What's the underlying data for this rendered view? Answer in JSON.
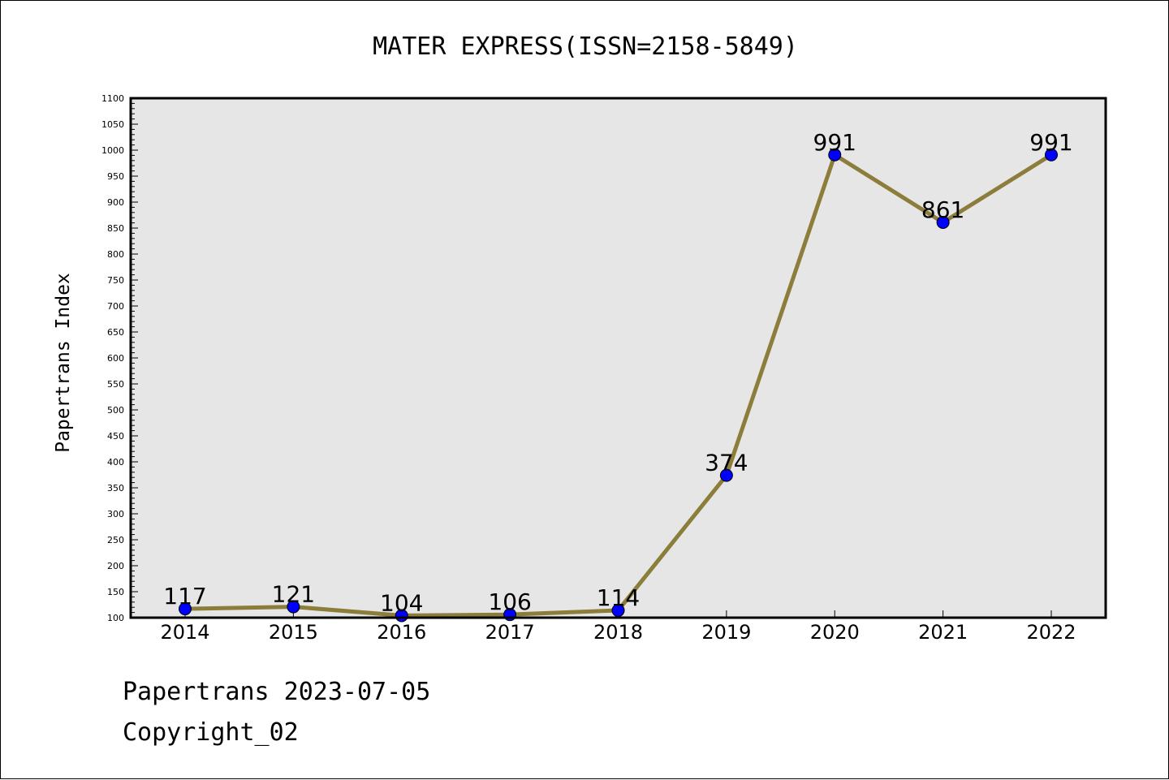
{
  "chart_data": {
    "type": "line",
    "title": "MATER EXPRESS(ISSN=2158-5849)",
    "xlabel": "",
    "ylabel": "Papertrans Index",
    "categories": [
      "2014",
      "2015",
      "2016",
      "2017",
      "2018",
      "2019",
      "2020",
      "2021",
      "2022"
    ],
    "series": [
      {
        "values": [
          117,
          121,
          104,
          106,
          114,
          374,
          991,
          861,
          991
        ],
        "line_color": "#8c7d3a",
        "marker_color": "#0000ff"
      }
    ],
    "ylim": [
      100,
      1100
    ],
    "y_major_step": 50,
    "y_minor_step": 10,
    "grid": false,
    "plot_background": "#e6e6e6",
    "data_labels": true
  },
  "footer": {
    "date_line": "Papertrans 2023-07-05",
    "copyright_line": "Copyright_02"
  }
}
